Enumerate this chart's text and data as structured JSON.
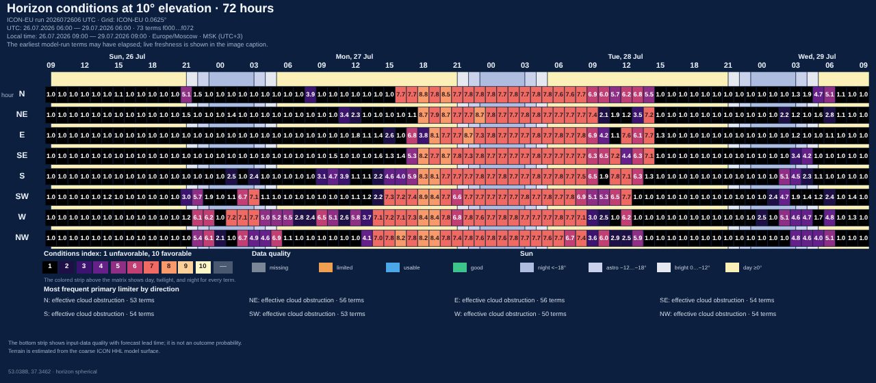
{
  "chart_data": {
    "type": "heatmap",
    "title": "Horizon conditions at 10° elevation · 72 hours",
    "subtitle": "ICON-EU run 2026072606 UTC · Grid: ICON-EU 0.0625°",
    "xlabel": "hour",
    "x": [
      "2026-07-26T09:00",
      "2026-07-26T10:00",
      "2026-07-26T11:00",
      "2026-07-26T12:00",
      "2026-07-26T13:00",
      "2026-07-26T14:00",
      "2026-07-26T15:00",
      "2026-07-26T16:00",
      "2026-07-26T17:00",
      "2026-07-26T18:00",
      "2026-07-26T19:00",
      "2026-07-26T20:00",
      "2026-07-26T21:00",
      "2026-07-26T22:00",
      "2026-07-26T23:00",
      "2026-07-27T00:00",
      "2026-07-27T01:00",
      "2026-07-27T02:00",
      "2026-07-27T03:00",
      "2026-07-27T04:00",
      "2026-07-27T05:00",
      "2026-07-27T06:00",
      "2026-07-27T07:00",
      "2026-07-27T08:00",
      "2026-07-27T09:00",
      "2026-07-27T10:00",
      "2026-07-27T11:00",
      "2026-07-27T12:00",
      "2026-07-27T13:00",
      "2026-07-27T14:00",
      "2026-07-27T15:00",
      "2026-07-27T16:00",
      "2026-07-27T17:00",
      "2026-07-27T18:00",
      "2026-07-27T19:00",
      "2026-07-27T20:00",
      "2026-07-27T21:00",
      "2026-07-27T22:00",
      "2026-07-27T23:00",
      "2026-07-28T00:00",
      "2026-07-28T01:00",
      "2026-07-28T02:00",
      "2026-07-28T03:00",
      "2026-07-28T04:00",
      "2026-07-28T05:00",
      "2026-07-28T06:00",
      "2026-07-28T07:00",
      "2026-07-28T08:00",
      "2026-07-28T09:00",
      "2026-07-28T10:00",
      "2026-07-28T11:00",
      "2026-07-28T12:00",
      "2026-07-28T13:00",
      "2026-07-28T14:00",
      "2026-07-28T15:00",
      "2026-07-28T16:00",
      "2026-07-28T17:00",
      "2026-07-28T18:00",
      "2026-07-28T19:00",
      "2026-07-28T20:00",
      "2026-07-28T21:00",
      "2026-07-28T22:00",
      "2026-07-28T23:00",
      "2026-07-29T00:00",
      "2026-07-29T01:00",
      "2026-07-29T02:00",
      "2026-07-29T03:00",
      "2026-07-29T04:00",
      "2026-07-29T05:00",
      "2026-07-29T06:00",
      "2026-07-29T07:00",
      "2026-07-29T08:00",
      "2026-07-29T09:00"
    ],
    "xlim": [
      "2026-07-26T08:30",
      "2026-07-29T09:30"
    ],
    "xticks": [
      {
        "value": "2026-07-26T09:00",
        "label": "09"
      },
      {
        "value": "2026-07-26T12:00",
        "label": "12"
      },
      {
        "value": "2026-07-26T15:00",
        "label": "15"
      },
      {
        "value": "2026-07-26T18:00",
        "label": "18"
      },
      {
        "value": "2026-07-26T21:00",
        "label": "21"
      },
      {
        "value": "2026-07-27T00:00",
        "label": "00"
      },
      {
        "value": "2026-07-27T03:00",
        "label": "03"
      },
      {
        "value": "2026-07-27T06:00",
        "label": "06"
      },
      {
        "value": "2026-07-27T09:00",
        "label": "09"
      },
      {
        "value": "2026-07-27T12:00",
        "label": "12"
      },
      {
        "value": "2026-07-27T15:00",
        "label": "15"
      },
      {
        "value": "2026-07-27T18:00",
        "label": "18"
      },
      {
        "value": "2026-07-27T21:00",
        "label": "21"
      },
      {
        "value": "2026-07-28T00:00",
        "label": "00"
      },
      {
        "value": "2026-07-28T03:00",
        "label": "03"
      },
      {
        "value": "2026-07-28T06:00",
        "label": "06"
      },
      {
        "value": "2026-07-28T09:00",
        "label": "09"
      },
      {
        "value": "2026-07-28T12:00",
        "label": "12"
      },
      {
        "value": "2026-07-28T15:00",
        "label": "15"
      },
      {
        "value": "2026-07-28T18:00",
        "label": "18"
      },
      {
        "value": "2026-07-28T21:00",
        "label": "21"
      },
      {
        "value": "2026-07-29T00:00",
        "label": "00"
      },
      {
        "value": "2026-07-29T03:00",
        "label": "03"
      },
      {
        "value": "2026-07-29T06:00",
        "label": "06"
      },
      {
        "value": "2026-07-29T09:00",
        "label": "09"
      }
    ],
    "y_categories": [
      "N",
      "NE",
      "E",
      "SE",
      "S",
      "SW",
      "W",
      "NW"
    ],
    "legend": "bottom",
    "cells": [
      [
        1.0,
        1.0,
        1.0,
        1.0,
        1.0,
        1.0,
        1.1,
        1.0,
        1.0,
        1.0,
        1.0,
        1.0,
        5.1,
        1.5,
        1.0,
        1.0,
        1.0,
        1.0,
        1.0,
        1.0,
        1.0,
        1.0,
        1.0,
        3.9,
        1.0,
        1.0,
        1.0,
        1.0,
        1.0,
        1.0,
        1.0,
        7.7,
        7.7,
        8.8,
        7.8,
        8.5,
        7.7,
        7.8,
        7.8,
        7.8,
        7.7,
        7.8,
        7.7,
        7.8,
        7.8,
        7.6,
        7.6,
        7.7,
        6.9,
        6.0,
        5.7,
        6.2,
        6.8,
        5.5,
        1.0,
        1.0,
        1.0,
        1.0,
        1.0,
        1.0,
        1.0,
        1.0,
        1.0,
        1.0,
        1.0,
        1.0,
        1.3,
        1.9,
        4.7,
        5.1,
        1.1,
        1.0,
        1.0
      ],
      [
        1.0,
        1.0,
        1.0,
        1.0,
        1.0,
        1.0,
        1.0,
        1.0,
        1.0,
        1.0,
        1.0,
        1.0,
        1.5,
        1.0,
        1.0,
        1.0,
        1.4,
        1.0,
        1.0,
        1.0,
        1.0,
        1.0,
        1.0,
        1.0,
        1.0,
        1.0,
        3.4,
        2.3,
        1.0,
        1.0,
        1.0,
        1.0,
        1.1,
        8.7,
        7.9,
        8.7,
        7.7,
        7.7,
        8.7,
        7.8,
        7.7,
        7.7,
        7.8,
        7.8,
        7.7,
        7.7,
        7.7,
        7.7,
        7.4,
        2.1,
        1.9,
        1.2,
        3.5,
        7.2,
        1.0,
        1.0,
        1.0,
        1.0,
        1.0,
        1.0,
        1.0,
        1.0,
        1.0,
        1.0,
        1.0,
        2.2,
        1.2,
        1.0,
        1.6,
        2.8,
        1.1,
        1.0,
        1.0
      ],
      [
        1.0,
        1.0,
        1.0,
        1.0,
        1.0,
        1.0,
        1.0,
        1.0,
        1.0,
        1.0,
        1.0,
        1.0,
        1.0,
        1.0,
        1.0,
        1.0,
        1.0,
        1.0,
        1.0,
        1.0,
        1.0,
        1.0,
        1.0,
        1.0,
        1.0,
        1.0,
        1.0,
        1.8,
        1.1,
        1.4,
        2.6,
        1.0,
        6.8,
        3.8,
        8.1,
        7.7,
        7.7,
        8.7,
        7.3,
        7.8,
        7.7,
        7.7,
        7.7,
        7.8,
        7.7,
        7.8,
        7.7,
        7.8,
        6.9,
        4.2,
        1.1,
        7.6,
        6.1,
        7.7,
        1.3,
        1.0,
        1.0,
        1.0,
        1.0,
        1.0,
        1.0,
        1.0,
        1.0,
        1.0,
        1.0,
        1.0,
        1.2,
        1.0,
        1.0,
        1.1,
        1.0,
        1.0,
        1.0
      ],
      [
        1.0,
        1.0,
        1.0,
        1.0,
        1.0,
        1.0,
        1.0,
        1.0,
        1.0,
        1.0,
        1.0,
        1.0,
        1.0,
        1.0,
        1.0,
        1.0,
        1.0,
        1.0,
        1.0,
        1.0,
        1.0,
        1.0,
        1.0,
        1.0,
        1.0,
        1.5,
        1.0,
        1.0,
        1.0,
        1.6,
        1.3,
        1.4,
        5.3,
        8.2,
        7.7,
        8.7,
        7.8,
        7.3,
        7.8,
        7.7,
        7.7,
        7.7,
        7.7,
        7.8,
        7.7,
        7.7,
        7.7,
        7.7,
        6.3,
        6.5,
        7.2,
        4.4,
        6.3,
        7.1,
        1.0,
        1.0,
        1.0,
        1.0,
        1.0,
        1.0,
        1.0,
        1.0,
        1.0,
        1.0,
        1.0,
        1.0,
        3.4,
        4.2,
        1.0,
        1.0,
        1.0,
        1.0,
        1.0
      ],
      [
        1.0,
        1.0,
        1.0,
        1.0,
        1.0,
        1.0,
        1.0,
        1.0,
        1.0,
        1.0,
        1.0,
        1.0,
        1.0,
        1.0,
        1.0,
        1.0,
        2.5,
        1.0,
        2.4,
        1.0,
        1.0,
        1.0,
        1.0,
        1.0,
        3.1,
        4.7,
        3.9,
        1.1,
        1.1,
        2.2,
        4.6,
        4.0,
        5.9,
        8.3,
        8.1,
        7.7,
        7.7,
        7.7,
        7.8,
        7.7,
        7.8,
        7.7,
        7.7,
        7.8,
        7.7,
        7.8,
        7.7,
        7.5,
        6.5,
        1.9,
        7.8,
        7.1,
        6.3,
        1.3,
        1.0,
        1.0,
        1.0,
        1.0,
        1.0,
        1.0,
        1.0,
        1.0,
        1.0,
        1.0,
        1.0,
        5.1,
        4.5,
        2.3,
        1.1,
        1.0,
        1.0,
        1.0,
        1.0
      ],
      [
        1.0,
        1.0,
        1.0,
        1.0,
        1.0,
        1.2,
        1.0,
        1.0,
        1.0,
        1.0,
        1.0,
        1.0,
        3.0,
        5.7,
        1.9,
        1.0,
        1.1,
        6.7,
        7.1,
        1.1,
        1.0,
        1.0,
        1.0,
        1.0,
        1.0,
        1.0,
        1.0,
        1.1,
        1.2,
        2.2,
        7.3,
        7.2,
        7.4,
        8.9,
        8.4,
        7.7,
        6.6,
        7.7,
        7.7,
        7.7,
        7.7,
        7.7,
        7.8,
        7.7,
        7.8,
        7.7,
        7.8,
        6.9,
        5.1,
        5.3,
        6.5,
        7.7,
        1.0,
        1.0,
        1.0,
        1.0,
        1.0,
        1.0,
        1.0,
        1.0,
        1.0,
        1.0,
        1.0,
        1.0,
        2.4,
        4.7,
        1.9,
        1.4,
        1.2,
        2.4,
        1.0,
        1.4,
        1.0
      ],
      [
        1.0,
        1.0,
        1.0,
        1.0,
        1.0,
        1.0,
        1.0,
        1.0,
        1.0,
        1.0,
        1.0,
        1.0,
        1.2,
        6.1,
        6.2,
        1.0,
        7.2,
        7.1,
        7.7,
        5.0,
        5.2,
        5.5,
        2.8,
        2.4,
        6.5,
        5.1,
        2.6,
        5.8,
        3.7,
        7.1,
        7.2,
        7.1,
        7.3,
        8.4,
        8.4,
        7.8,
        6.8,
        7.8,
        7.6,
        7.7,
        7.8,
        7.8,
        7.7,
        7.7,
        7.7,
        7.8,
        7.7,
        7.1,
        3.0,
        2.5,
        1.0,
        6.2,
        1.0,
        1.0,
        1.0,
        1.0,
        1.0,
        1.0,
        1.0,
        1.0,
        1.0,
        1.0,
        1.0,
        2.5,
        1.0,
        5.1,
        4.6,
        4.7,
        1.7,
        4.8,
        1.0,
        1.3,
        1.0
      ],
      [
        1.0,
        1.0,
        1.0,
        1.0,
        1.0,
        1.0,
        1.0,
        1.0,
        1.0,
        1.0,
        1.0,
        1.0,
        1.0,
        5.4,
        6.1,
        2.1,
        1.0,
        6.7,
        4.9,
        4.6,
        6.9,
        1.1,
        1.0,
        1.0,
        1.0,
        1.0,
        1.0,
        1.0,
        4.1,
        7.0,
        7.8,
        8.2,
        7.8,
        8.2,
        8.4,
        7.8,
        7.4,
        7.8,
        7.6,
        7.8,
        7.6,
        7.8,
        7.7,
        7.7,
        7.6,
        7.7,
        6.7,
        7.4,
        3.6,
        6.0,
        2.9,
        2.5,
        5.9,
        1.0,
        1.0,
        1.0,
        1.0,
        1.0,
        1.0,
        1.0,
        1.0,
        1.0,
        1.0,
        1.0,
        1.0,
        1.0,
        4.8,
        4.6,
        4.0,
        5.1,
        1.0,
        1.0,
        1.0
      ]
    ],
    "cell_labels": [
      [
        "1.0",
        "1.0",
        "1.0",
        "1.0",
        "1.0",
        "1.0",
        "1.1",
        "1.0",
        "1.0",
        "1.0",
        "1.0",
        "1.0",
        "5.1",
        "1.5",
        "1.0",
        "1.0",
        "1.0",
        "1.0",
        "1.0",
        "1.0",
        "1.0",
        "1.0",
        "1.0",
        "3.9",
        "1.0",
        "1.0",
        "1.0",
        "1.0",
        "1.0",
        "1.0",
        "1.0",
        "7.7",
        "7.7",
        "8.8",
        "7.8",
        "8.5",
        "7.7",
        "7.8",
        "7.8",
        "7.8",
        "7.7",
        "7.8",
        "7.7",
        "7.8",
        "7.8",
        "7.6",
        "7.6",
        "7.7",
        "6.9",
        "6.0",
        "5.7",
        "6.2",
        "6.8",
        "5.5",
        "1.0",
        "1.0",
        "1.0",
        "1.0",
        "1.0",
        "1.0",
        "1.0",
        "1.0",
        "1.0",
        "1.0",
        "1.0",
        "1.0",
        "1.3",
        "1.9",
        "4.7",
        "5.1",
        "1.1",
        "1.0",
        "1.0"
      ],
      [
        "1.0",
        "1.0",
        "1.0",
        "1.0",
        "1.0",
        "1.0",
        "1.0",
        "1.0",
        "1.0",
        "1.0",
        "1.0",
        "1.0",
        "1.5",
        "1.0",
        "1.0",
        "1.0",
        "1.4",
        "1.0",
        "1.0",
        "1.0",
        "1.0",
        "1.0",
        "1.0",
        "1.0",
        "1.0",
        "1.0",
        "3.4",
        "2.3",
        "1.0",
        "1.0",
        "1.0",
        "1.0",
        "1.1",
        "8.7",
        "7.9",
        "8.7",
        "7.7",
        "7.7",
        "8.7",
        "7.8",
        "7.7",
        "7.7",
        "7.8",
        "7.8",
        "7.7",
        "7.7",
        "7.7",
        "7.7",
        "7.4",
        "2.1",
        "1.9",
        "1.2",
        "3.5",
        "7.2",
        "1.0",
        "1.0",
        "1.0",
        "1.0",
        "1.0",
        "1.0",
        "1.0",
        "1.0",
        "1.0",
        "1.0",
        "1.0",
        "2.2",
        "1.2",
        "1.0",
        "1.6",
        "2.8",
        "1.1",
        "1.0",
        "1.0"
      ],
      [
        "1.0",
        "1.0",
        "1.0",
        "1.0",
        "1.0",
        "1.0",
        "1.0",
        "1.0",
        "1.0",
        "1.0",
        "1.0",
        "1.0",
        "1.0",
        "1.0",
        "1.0",
        "1.0",
        "1.0",
        "1.0",
        "1.0",
        "1.0",
        "1.0",
        "1.0",
        "1.0",
        "1.0",
        "1.0",
        "1.0",
        "1.0",
        "1.8",
        "1.1",
        "1.4",
        "2.6",
        "1.0",
        "6.8",
        "3.8",
        "8.1",
        "7.7",
        "7.7",
        "8.7",
        "7.3",
        "7.8",
        "7.7",
        "7.7",
        "7.7",
        "7.8",
        "7.7",
        "7.8",
        "7.7",
        "7.8",
        "6.9",
        "4.2",
        "1.1",
        "7.6",
        "6.1",
        "7.7",
        "1.3",
        "1.0",
        "1.0",
        "1.0",
        "1.0",
        "1.0",
        "1.0",
        "1.0",
        "1.0",
        "1.0",
        "1.0",
        "1.0",
        "1.2",
        "1.0",
        "1.0",
        "1.1",
        "1.0",
        "1.0",
        "1.0"
      ],
      [
        "1.0",
        "1.0",
        "1.0",
        "1.0",
        "1.0",
        "1.0",
        "1.0",
        "1.0",
        "1.0",
        "1.0",
        "1.0",
        "1.0",
        "1.0",
        "1.0",
        "1.0",
        "1.0",
        "1.0",
        "1.0",
        "1.0",
        "1.0",
        "1.0",
        "1.0",
        "1.0",
        "1.0",
        "1.0",
        "1.5",
        "1.0",
        "1.0",
        "1.0",
        "1.6",
        "1.3",
        "1.4",
        "5.3",
        "8.2",
        "7.7",
        "8.7",
        "7.8",
        "7.3",
        "7.8",
        "7.7",
        "7.7",
        "7.7",
        "7.7",
        "7.8",
        "7.7",
        "7.7",
        "7.7",
        "7.7",
        "6.3",
        "6.5",
        "7.2",
        "4.4",
        "6.3",
        "7.1",
        "1.0",
        "1.0",
        "1.0",
        "1.0",
        "1.0",
        "1.0",
        "1.0",
        "1.0",
        "1.0",
        "1.0",
        "1.0",
        "1.0",
        "3.4",
        "4.2",
        "1.0",
        "1.0",
        "1.0",
        "1.0",
        "1.0"
      ],
      [
        "1.0",
        "1.0",
        "1.0",
        "1.0",
        "1.0",
        "1.0",
        "1.0",
        "1.0",
        "1.0",
        "1.0",
        "1.0",
        "1.0",
        "1.0",
        "1.0",
        "1.0",
        "1.0",
        "2.5",
        "1.0",
        "2.4",
        "1.0",
        "1.0",
        "1.0",
        "1.0",
        "1.0",
        "3.1",
        "4.7",
        "3.9",
        "1.1",
        "1.1",
        "2.2",
        "4.6",
        "4.0",
        "5.9",
        "8.3",
        "8.1",
        "7.7",
        "7.7",
        "7.7",
        "7.8",
        "7.7",
        "7.8",
        "7.7",
        "7.7",
        "7.8",
        "7.7",
        "7.8",
        "7.7",
        "7.5",
        "6.5",
        "1.9",
        "7.8",
        "7.1",
        "6.3",
        "1.3",
        "1.0",
        "1.0",
        "1.0",
        "1.0",
        "1.0",
        "1.0",
        "1.0",
        "1.0",
        "1.0",
        "1.0",
        "1.0",
        "5.1",
        "4.5",
        "2.3",
        "1.1",
        "1.0",
        "1.0",
        "1.0",
        "1.0"
      ],
      [
        "1.0",
        "1.0",
        "1.0",
        "1.0",
        "1.0",
        "1.2",
        "1.0",
        "1.0",
        "1.0",
        "1.0",
        "1.0",
        "1.0",
        "3.0",
        "5.7",
        "1.9",
        "1.0",
        "1.1",
        "6.7",
        "7.1",
        "1.1",
        "1.0",
        "1.0",
        "1.0",
        "1.0",
        "1.0",
        "1.0",
        "1.0",
        "1.1",
        "1.2",
        "2.2",
        "7.3",
        "7.2",
        "7.4",
        "8.9",
        "8.4",
        "7.7",
        "6.6",
        "7.7",
        "7.7",
        "7.7",
        "7.7",
        "7.7",
        "7.8",
        "7.7",
        "7.8",
        "7.7",
        "7.8",
        "6.9",
        "5.1",
        "5.3",
        "6.5",
        "7.7",
        "1.0",
        "1.0",
        "1.0",
        "1.0",
        "1.0",
        "1.0",
        "1.0",
        "1.0",
        "1.0",
        "1.0",
        "1.0",
        "1.0",
        "2.4",
        "4.7",
        "1.9",
        "1.4",
        "1.2",
        "2.4",
        "1.0",
        "1.4",
        "1.0"
      ],
      [
        "1.0",
        "1.0",
        "1.0",
        "1.0",
        "1.0",
        "1.0",
        "1.0",
        "1.0",
        "1.0",
        "1.0",
        "1.0",
        "1.0",
        "1.2",
        "6.1",
        "6.2",
        "1.0",
        "7.2",
        "7.1",
        "7.7",
        "5.0",
        "5.2",
        "5.5",
        "2.8",
        "2.4",
        "6.5",
        "5.1",
        "2.6",
        "5.8",
        "3.7",
        "7.1",
        "7.2",
        "7.1",
        "7.3",
        "8.4",
        "8.4",
        "7.8",
        "6.8",
        "7.8",
        "7.6",
        "7.7",
        "7.8",
        "7.8",
        "7.7",
        "7.7",
        "7.7",
        "7.8",
        "7.7",
        "7.1",
        "3.0",
        "2.5",
        "1.0",
        "6.2",
        "1.0",
        "1.0",
        "1.0",
        "1.0",
        "1.0",
        "1.0",
        "1.0",
        "1.0",
        "1.0",
        "1.0",
        "1.0",
        "2.5",
        "1.0",
        "5.1",
        "4.6",
        "4.7",
        "1.7",
        "4.8",
        "1.0",
        "1.3",
        "1.0"
      ],
      [
        "1.0",
        "1.0",
        "1.0",
        "1.0",
        "1.0",
        "1.0",
        "1.0",
        "1.0",
        "1.0",
        "1.0",
        "1.0",
        "1.0",
        "1.0",
        "5.4",
        "6.1",
        "2.1",
        "1.0",
        "6.7",
        "4.9",
        "4.6",
        "6.9",
        "1.1",
        "1.0",
        "1.0",
        "1.0",
        "1.0",
        "1.0",
        "1.0",
        "4.1",
        "7.0",
        "7.8",
        "8.2",
        "7.8",
        "8.2",
        "8.4",
        "7.8",
        "7.4",
        "7.8",
        "7.6",
        "7.8",
        "7.6",
        "7.8",
        "7.7",
        "7.7",
        "7.6",
        "7.7",
        "6.7",
        "7.4",
        "3.6",
        "6.0",
        "2.9",
        "2.5",
        "5.9",
        "1.0",
        "1.0",
        "1.0",
        "1.0",
        "1.0",
        "1.0",
        "1.0",
        "1.0",
        "1.0",
        "1.0",
        "1.0",
        "1.0",
        "1.0",
        "4.8",
        "4.6",
        "4.0",
        "5.1",
        "1.0",
        "1.0",
        "1.0"
      ]
    ],
    "bands": [
      {
        "axis": "x",
        "from": "2026-07-26T23:00",
        "to": "2026-07-27T03:00",
        "label": "night <−18°",
        "color": "#aebddf"
      },
      {
        "axis": "x",
        "from": "2026-07-27T23:00",
        "to": "2026-07-28T03:00",
        "color": "#aebddf"
      },
      {
        "axis": "x",
        "from": "2026-07-28T23:00",
        "to": "2026-07-29T03:00",
        "color": "#aebddf"
      },
      {
        "axis": "x",
        "from": "2026-07-26T22:00",
        "to": "2026-07-26T23:00",
        "label": "astro −12…−18°",
        "color": "#c9d2ea"
      },
      {
        "axis": "x",
        "from": "2026-07-27T03:00",
        "to": "2026-07-27T04:00",
        "color": "#c9d2ea"
      },
      {
        "axis": "x",
        "from": "2026-07-27T22:00",
        "to": "2026-07-27T23:00",
        "color": "#c9d2ea"
      },
      {
        "axis": "x",
        "from": "2026-07-28T03:00",
        "to": "2026-07-28T04:00",
        "color": "#c9d2ea"
      },
      {
        "axis": "x",
        "from": "2026-07-28T22:00",
        "to": "2026-07-28T23:00",
        "color": "#c9d2ea"
      },
      {
        "axis": "x",
        "from": "2026-07-29T03:00",
        "to": "2026-07-29T04:00",
        "color": "#c9d2ea"
      },
      {
        "axis": "x",
        "from": "2026-07-26T21:00",
        "to": "2026-07-26T22:00",
        "label": "bright 0…−12°",
        "color": "#e6e8ef"
      },
      {
        "axis": "x",
        "from": "2026-07-27T04:00",
        "to": "2026-07-27T05:00",
        "color": "#e6e8ef"
      },
      {
        "axis": "x",
        "from": "2026-07-27T21:00",
        "to": "2026-07-27T22:00",
        "color": "#e6e8ef"
      },
      {
        "axis": "x",
        "from": "2026-07-28T04:00",
        "to": "2026-07-28T05:00",
        "color": "#e6e8ef"
      },
      {
        "axis": "x",
        "from": "2026-07-28T21:00",
        "to": "2026-07-28T22:00",
        "color": "#e6e8ef"
      },
      {
        "axis": "x",
        "from": "2026-07-29T04:00",
        "to": "2026-07-29T05:00",
        "color": "#e6e8ef"
      },
      {
        "axis": "x",
        "from": "2026-07-26T09:00",
        "to": "2026-07-26T21:00",
        "label": "day ≥0°",
        "color": "#fbf0b8"
      },
      {
        "axis": "x",
        "from": "2026-07-27T05:00",
        "to": "2026-07-27T21:00",
        "color": "#fbf0b8"
      },
      {
        "axis": "x",
        "from": "2026-07-28T05:00",
        "to": "2026-07-28T21:00",
        "color": "#fbf0b8"
      },
      {
        "axis": "x",
        "from": "2026-07-29T05:00",
        "to": "2026-07-29T10:00",
        "color": "#fbf0b8"
      }
    ],
    "annotations": [
      "Sun, 26 Jul",
      "Mon, 27 Jul",
      "Tue, 28 Jul",
      "Wed, 29 Jul",
      "UTC: 26.07.2026 06:00 — 29.07.2026 06:00 · 73 terms f000…f072",
      "Local time: 26.07.2026 09:00 — 29.07.2026 09:00 · Europe/Moscow · MSK (UTC+3)",
      "The earliest model-run terms may have elapsed; live freshness is shown in the image caption.",
      "Conditions index: 1 unfavorable, 10 favorable",
      "1",
      "2",
      "3",
      "4",
      "5",
      "6",
      "7",
      "8",
      "9",
      "10",
      "—",
      "Data quality",
      "missing",
      "limited",
      "usable",
      "good",
      "Sun",
      "The colored strip above the matrix shows day, twilight, and night for every term.",
      "Most frequent primary limiter by direction",
      "N: effective cloud obstruction · 53 terms",
      "NE: effective cloud obstruction · 56 terms",
      "E: effective cloud obstruction · 56 terms",
      "SE: effective cloud obstruction · 54 terms",
      "S: effective cloud obstruction · 54 terms",
      "SW: effective cloud obstruction · 53 terms",
      "W: effective cloud obstruction · 50 terms",
      "NW: effective cloud obstruction · 54 terms",
      "The bottom strip shows input-data quality with forecast lead time; it is not an outcome probability.",
      "Terrain is estimated from the coarse ICON HHL model surface.",
      "53.0388, 37.3462 · horizon spherical"
    ]
  }
}
